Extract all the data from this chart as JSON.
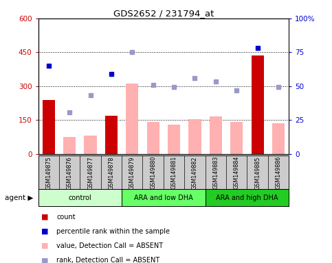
{
  "title": "GDS2652 / 231794_at",
  "samples": [
    "GSM149875",
    "GSM149876",
    "GSM149877",
    "GSM149878",
    "GSM149879",
    "GSM149880",
    "GSM149881",
    "GSM149882",
    "GSM149883",
    "GSM149884",
    "GSM149885",
    "GSM149886"
  ],
  "groups": [
    {
      "label": "control",
      "color": "#ccffcc",
      "start": 0,
      "end": 4
    },
    {
      "label": "ARA and low DHA",
      "color": "#66ff66",
      "start": 4,
      "end": 8
    },
    {
      "label": "ARA and high DHA",
      "color": "#22cc22",
      "start": 8,
      "end": 12
    }
  ],
  "bar_values": [
    240,
    null,
    null,
    170,
    null,
    null,
    null,
    null,
    null,
    null,
    435,
    null
  ],
  "bar_color_present": "#cc0000",
  "absent_bar_values": [
    null,
    75,
    80,
    null,
    310,
    140,
    130,
    155,
    165,
    140,
    null,
    135
  ],
  "absent_bar_color": "#ffb0b0",
  "percentile_rank_present": [
    390,
    null,
    null,
    355,
    null,
    null,
    null,
    null,
    null,
    null,
    470,
    null
  ],
  "percentile_rank_absent": [
    null,
    185,
    260,
    null,
    450,
    305,
    295,
    335,
    320,
    280,
    null,
    295
  ],
  "percentile_rank_present_color": "#0000cc",
  "percentile_rank_absent_color": "#9999cc",
  "ylim_left": [
    0,
    600
  ],
  "yticks_left": [
    0,
    150,
    300,
    450,
    600
  ],
  "ytick_labels_left": [
    "0",
    "150",
    "300",
    "450",
    "600"
  ],
  "ytick_labels_right": [
    "0",
    "25",
    "50",
    "75",
    "100%"
  ],
  "hlines": [
    150,
    300,
    450
  ],
  "left_axis_color": "#cc0000",
  "right_axis_color": "#0000cc",
  "bg_color": "#cccccc",
  "legend_items": [
    {
      "label": "count",
      "color": "#cc0000"
    },
    {
      "label": "percentile rank within the sample",
      "color": "#0000cc"
    },
    {
      "label": "value, Detection Call = ABSENT",
      "color": "#ffb0b0"
    },
    {
      "label": "rank, Detection Call = ABSENT",
      "color": "#9999cc"
    }
  ]
}
